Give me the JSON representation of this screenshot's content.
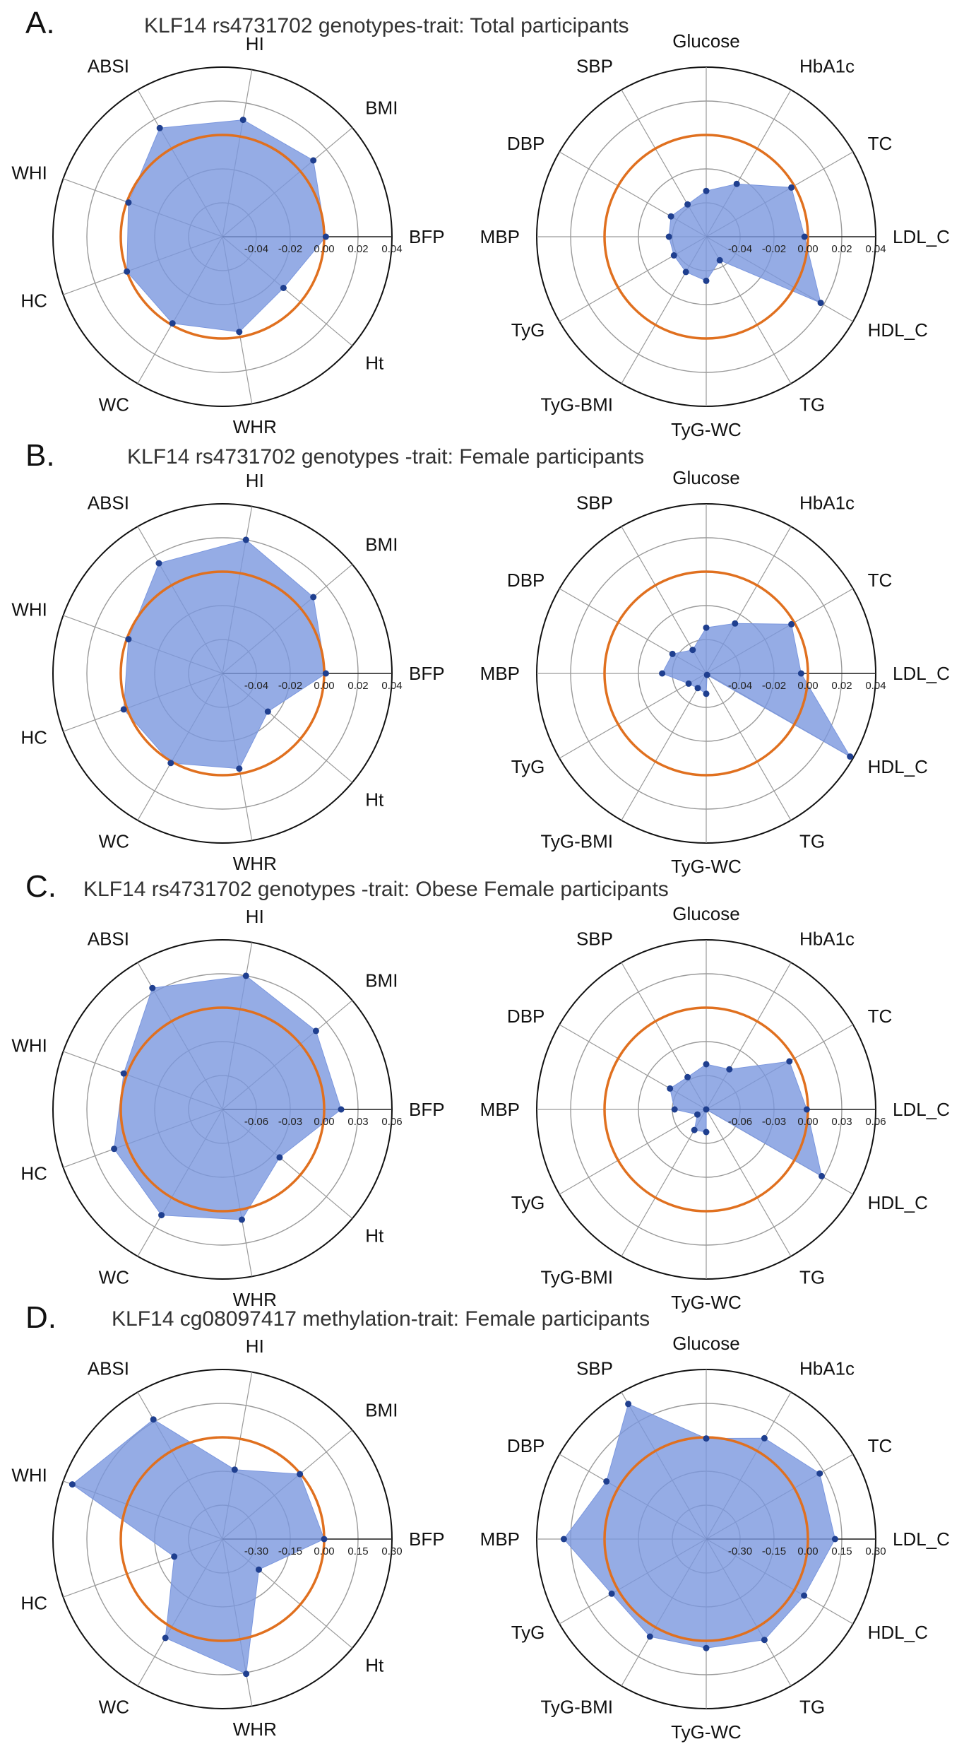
{
  "panels": [
    {
      "letter": "A.",
      "title": "KLF14 rs4731702 genotypes-trait: Total participants"
    },
    {
      "letter": "B.",
      "title": "KLF14 rs4731702 genotypes -trait: Female participants"
    },
    {
      "letter": "C.",
      "title": "KLF14 rs4731702 genotypes -trait: Obese Female participants"
    },
    {
      "letter": "D.",
      "title": "KLF14 cg08097417 methylation-trait: Female participants"
    }
  ],
  "colors": {
    "fill": "#7b97de",
    "point": "#1f3f8f",
    "zero_circle": "#e0701f",
    "grid": "#9a9a9a",
    "outer": "#111111"
  },
  "chart_data": [
    {
      "type": "radar",
      "panel": "A",
      "title": "KLF14 rs4731702 genotypes-trait: Total participants",
      "axes": [
        "BFP",
        "BMI",
        "HI",
        "ABSI",
        "WHI",
        "HC",
        "WC",
        "WHR",
        "Ht"
      ],
      "values": [
        0.001,
        0.01,
        0.01,
        0.014,
        -0.001,
        0.0,
        -0.001,
        -0.003,
        -0.013
      ],
      "rlim": [
        -0.06,
        0.04
      ],
      "radial_ticks": [
        "-0.04",
        "-0.02",
        "0.00",
        "0.02",
        "0.04"
      ],
      "zero_line": 0.0
    },
    {
      "type": "radar",
      "panel": "A",
      "title": "KLF14 rs4731702 genotypes-trait: Total participants",
      "axes": [
        "LDL_C",
        "TC",
        "HbA1c",
        "Glucose",
        "SBP",
        "DBP",
        "MBP",
        "TyG",
        "TyG-BMI",
        "TyG-WC",
        "TG",
        "HDL_C"
      ],
      "values": [
        -0.002,
        -0.002,
        -0.024,
        -0.033,
        -0.038,
        -0.036,
        -0.038,
        -0.038,
        -0.036,
        -0.034,
        -0.044,
        0.018
      ],
      "rlim": [
        -0.06,
        0.04
      ],
      "radial_ticks": [
        "-0.04",
        "-0.02",
        "0.00",
        "0.02",
        "0.04"
      ],
      "zero_line": 0.0
    },
    {
      "type": "radar",
      "panel": "B",
      "title": "KLF14 rs4731702 genotypes -trait: Female participants",
      "axes": [
        "BFP",
        "BMI",
        "HI",
        "ABSI",
        "WHI",
        "HC",
        "WC",
        "WHR",
        "Ht"
      ],
      "values": [
        0.001,
        0.01,
        0.02,
        0.015,
        -0.001,
        0.002,
        0.001,
        -0.003,
        -0.025
      ],
      "rlim": [
        -0.06,
        0.04
      ],
      "radial_ticks": [
        "-0.04",
        "-0.02",
        "0.00",
        "0.02",
        "0.04"
      ],
      "zero_line": 0.0
    },
    {
      "type": "radar",
      "panel": "B",
      "title": "KLF14 rs4731702 genotypes -trait: Female participants",
      "axes": [
        "LDL_C",
        "TC",
        "HbA1c",
        "Glucose",
        "SBP",
        "DBP",
        "MBP",
        "TyG",
        "TyG-BMI",
        "TyG-WC",
        "TG",
        "HDL_C"
      ],
      "values": [
        -0.004,
        -0.002,
        -0.026,
        -0.033,
        -0.044,
        -0.037,
        -0.034,
        -0.048,
        -0.05,
        -0.048,
        -0.059,
        0.038
      ],
      "rlim": [
        -0.06,
        0.04
      ],
      "radial_ticks": [
        "-0.04",
        "-0.02",
        "0.00",
        "0.02",
        "0.04"
      ],
      "zero_line": 0.0
    },
    {
      "type": "radar",
      "panel": "C",
      "title": "KLF14 rs4731702 genotypes -trait: Obese Female participants",
      "axes": [
        "BFP",
        "BMI",
        "HI",
        "ABSI",
        "WHI",
        "HC",
        "WC",
        "WHR",
        "Ht"
      ],
      "values": [
        0.015,
        0.018,
        0.03,
        0.034,
        0.003,
        0.012,
        0.018,
        0.009,
        -0.024
      ],
      "rlim": [
        -0.09,
        0.06
      ],
      "radial_ticks": [
        "-0.06",
        "-0.03",
        "0.00",
        "0.03",
        "0.06"
      ],
      "zero_line": 0.0
    },
    {
      "type": "radar",
      "panel": "C",
      "title": "KLF14 rs4731702 genotypes -trait: Obese Female participants",
      "axes": [
        "LDL_C",
        "TC",
        "HbA1c",
        "Glucose",
        "SBP",
        "DBP",
        "MBP",
        "TyG",
        "TyG-BMI",
        "TyG-WC",
        "TG",
        "HDL_C"
      ],
      "values": [
        -0.001,
        -0.005,
        -0.049,
        -0.05,
        -0.057,
        -0.053,
        -0.062,
        -0.081,
        -0.069,
        -0.07,
        -0.09,
        0.028
      ],
      "rlim": [
        -0.09,
        0.06
      ],
      "radial_ticks": [
        "-0.06",
        "-0.03",
        "0.00",
        "0.03",
        "0.06"
      ],
      "zero_line": 0.0
    },
    {
      "type": "radar",
      "panel": "D",
      "title": "KLF14 cg08097417 methylation-trait: Female participants",
      "axes": [
        "BFP",
        "BMI",
        "HI",
        "ABSI",
        "WHI",
        "HC",
        "WC",
        "WHR",
        "Ht"
      ],
      "values": [
        0.0,
        -0.003,
        -0.138,
        0.161,
        0.257,
        -0.223,
        0.055,
        0.155,
        -0.24
      ],
      "rlim": [
        -0.45,
        0.3
      ],
      "radial_ticks": [
        "-0.30",
        "-0.15",
        "0.00",
        "0.15",
        "0.30"
      ],
      "zero_line": 0.0
    },
    {
      "type": "radar",
      "panel": "D",
      "title": "KLF14 cg08097417 methylation-trait: Female participants",
      "axes": [
        "LDL_C",
        "TC",
        "HbA1c",
        "Glucose",
        "SBP",
        "DBP",
        "MBP",
        "TyG",
        "TyG-BMI",
        "TyG-WC",
        "TG",
        "HDL_C"
      ],
      "values": [
        0.12,
        0.13,
        0.065,
        -0.005,
        0.24,
        0.06,
        0.18,
        0.033,
        0.048,
        0.032,
        0.065,
        0.05
      ],
      "rlim": [
        -0.45,
        0.3
      ],
      "radial_ticks": [
        "-0.30",
        "-0.15",
        "0.00",
        "0.15",
        "0.30"
      ],
      "zero_line": 0.0
    }
  ]
}
